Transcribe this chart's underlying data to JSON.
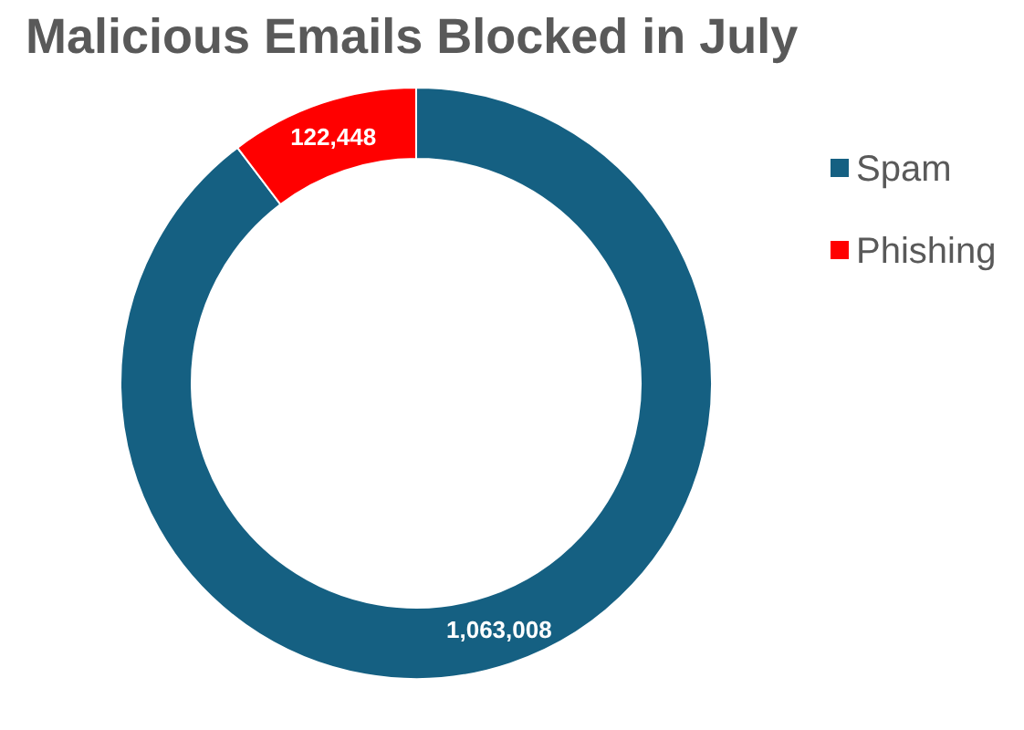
{
  "chart_data": {
    "type": "donut",
    "title": "Malicious Emails Blocked in July",
    "categories": [
      "Spam",
      "Phishing"
    ],
    "values": [
      1063008,
      122448
    ],
    "colors": [
      "#156082",
      "#ff0000"
    ],
    "value_labels": [
      "1,063,008",
      "122,448"
    ],
    "legend": "right"
  }
}
